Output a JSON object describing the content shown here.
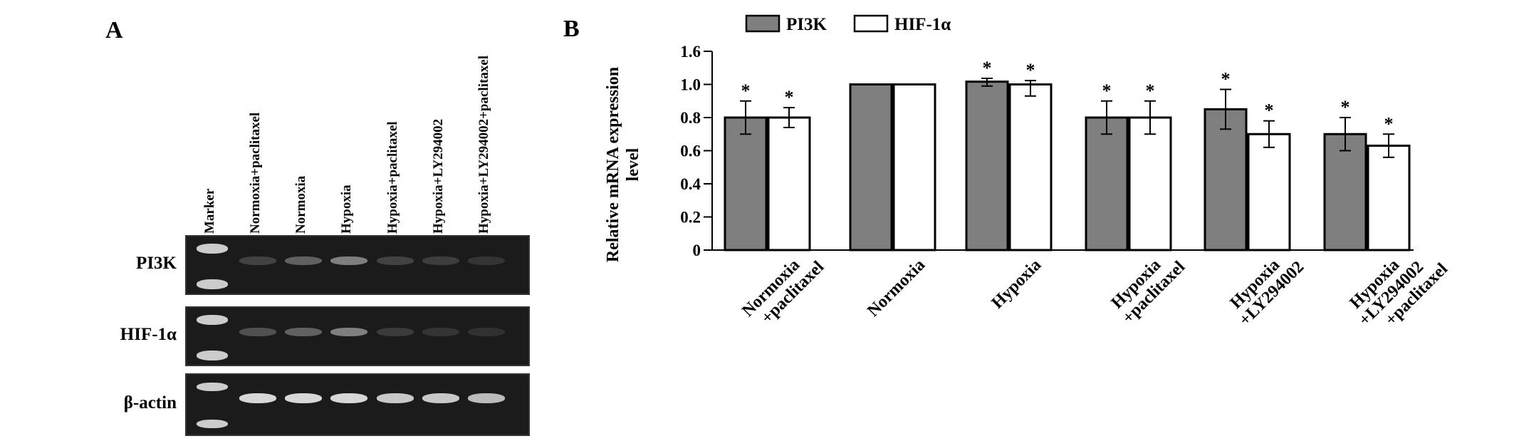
{
  "panel_a": {
    "letter": "A",
    "lanes": [
      "Marker",
      "Normoxia+paclitaxel",
      "Normoxia",
      "Hypoxia",
      "Hypoxia+paclitaxel",
      "Hypoxia+LY294002",
      "Hypoxia+LY294002+paclitaxel"
    ],
    "gels": [
      {
        "label": "PI3K",
        "intensities": [
          0.25,
          0.45,
          0.6,
          0.25,
          0.22,
          0.15
        ]
      },
      {
        "label": "HIF-1α",
        "intensities": [
          0.35,
          0.45,
          0.6,
          0.2,
          0.15,
          0.12
        ]
      },
      {
        "label": "β-actin",
        "intensities": [
          0.95,
          0.95,
          0.95,
          0.9,
          0.9,
          0.85
        ]
      }
    ]
  },
  "panel_b": {
    "letter": "B"
  },
  "chart_data": {
    "type": "bar",
    "title": "",
    "xlabel": "",
    "ylabel": "Relative mRNA expression level",
    "categories": [
      "Normoxia +paclitaxel",
      "Normoxia",
      "Hypoxia",
      "Hypoxia +paclitaxel",
      "Hypoxia +LY294002",
      "Hypoxia +LY294002 +paclitaxel"
    ],
    "category_lines": [
      [
        "Normoxia",
        "+paclitaxel"
      ],
      [
        "Normoxia"
      ],
      [
        "Hypoxia"
      ],
      [
        "Hypoxia",
        "+paclitaxel"
      ],
      [
        "Hypoxia",
        "+LY294002"
      ],
      [
        "Hypoxia",
        "+LY294002",
        "+paclitaxel"
      ]
    ],
    "yticks": [
      "0",
      "0.2",
      "0.4",
      "0.6",
      "0.8",
      "1.0",
      "1.6"
    ],
    "ytick_values": [
      0,
      0.2,
      0.4,
      0.6,
      0.8,
      1.0,
      1.6
    ],
    "axis_note": "broken y-axis: top tick 1.6 drawn one step above 1.0",
    "series": [
      {
        "name": "PI3K",
        "color": "#7f7f7f",
        "values": [
          0.8,
          1.0,
          1.05,
          0.8,
          0.85,
          0.7
        ],
        "errors": [
          0.1,
          0,
          0.06,
          0.1,
          0.12,
          0.1
        ],
        "significant": [
          true,
          false,
          true,
          true,
          true,
          true
        ]
      },
      {
        "name": "HIF-1α",
        "color": "#ffffff",
        "values": [
          0.8,
          1.0,
          1.0,
          0.8,
          0.7,
          0.63
        ],
        "errors": [
          0.06,
          0,
          0.07,
          0.1,
          0.08,
          0.07
        ],
        "significant": [
          true,
          false,
          true,
          true,
          true,
          true
        ]
      }
    ],
    "significance_marker": "*",
    "legend_position": "top"
  }
}
